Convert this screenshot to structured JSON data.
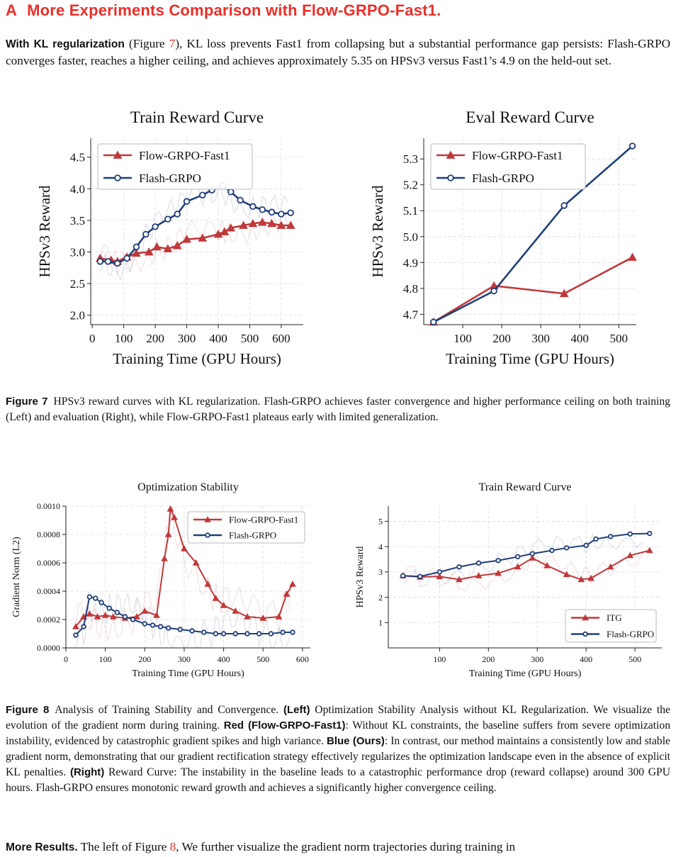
{
  "section": {
    "number": "A",
    "title": "More Experiments Comparison with Flow-GRPO-Fast1."
  },
  "intro": {
    "lead": "With KL regularization",
    "text_1": " (Figure ",
    "ref": "7",
    "text_2": "), KL loss prevents Fast1 from collapsing but a substantial performance gap persists: Flash-GRPO converges faster, reaches a higher ceiling, and achieves approximately 5.35 on HPSv3 versus Fast1’s 4.9 on the held-out set."
  },
  "figure7_caption": {
    "label": "Figure 7",
    "text": "HPSv3 reward curves with KL regularization. Flash-GRPO achieves faster convergence and higher performance ceiling on both training (Left) and evaluation (Right), while Flow-GRPO-Fast1 plateaus early with limited generalization."
  },
  "figure8_caption": {
    "label": "Figure 8",
    "text_1": "Analysis of Training Stability and Convergence. ",
    "left_label": "(Left)",
    "text_2": " Optimization Stability Analysis without KL Regularization. We visualize the evolution of the gradient norm during training. ",
    "red_label": "Red (Flow-GRPO-Fast1)",
    "text_3": ": Without KL constraints, the baseline suffers from severe optimization instability, evidenced by catastrophic gradient spikes and high variance. ",
    "blue_label": "Blue (Ours)",
    "text_4": ": In contrast, our method maintains a consistently low and stable gradient norm, demonstrating that our gradient rectification strategy effectively regularizes the optimization landscape even in the absence of explicit KL penalties. ",
    "right_label": "(Right)",
    "text_5": " Reward Curve: The instability in the baseline leads to a catastrophic performance drop (reward collapse) around 300 GPU hours. Flash-GRPO ensures monotonic reward growth and achieves a significantly higher convergence ceiling."
  },
  "more_results": {
    "lead": "More Results.",
    "text_1": " The left of Figure ",
    "ref": "8",
    "text_2": ", We further visualize the gradient norm trajectories during training in"
  },
  "colors": {
    "red": "#c0393b",
    "blue": "#1f3f7a",
    "accent": "#e8302a"
  },
  "chart_data": [
    {
      "type": "line",
      "title": "Train Reward Curve",
      "xlabel": "Training Time (GPU Hours)",
      "ylabel": "HPSv3 Reward",
      "xlim": [
        -5,
        670
      ],
      "ylim": [
        1.85,
        4.8
      ],
      "xticks": [
        0,
        100,
        200,
        300,
        400,
        500,
        600
      ],
      "yticks": [
        2.0,
        2.5,
        3.0,
        3.5,
        4.0,
        4.5
      ],
      "ytick_decimals": 1,
      "grid": true,
      "legend": "top-left",
      "series": [
        {
          "name": "Flow-GRPO-Fast1",
          "color": "#c0393b",
          "marker": "triangle",
          "x": [
            25,
            60,
            80,
            110,
            140,
            180,
            205,
            240,
            270,
            300,
            350,
            400,
            420,
            440,
            480,
            510,
            540,
            570,
            600,
            630
          ],
          "y": [
            2.9,
            2.87,
            2.85,
            2.92,
            2.98,
            3.0,
            3.08,
            3.05,
            3.1,
            3.2,
            3.22,
            3.28,
            3.32,
            3.38,
            3.42,
            3.45,
            3.47,
            3.45,
            3.42,
            3.42
          ]
        },
        {
          "name": "Flash-GRPO",
          "color": "#1f3f7a",
          "marker": "circle",
          "x": [
            25,
            50,
            80,
            110,
            140,
            170,
            200,
            240,
            270,
            300,
            350,
            380,
            415,
            440,
            470,
            510,
            540,
            570,
            600,
            630
          ],
          "y": [
            2.85,
            2.85,
            2.82,
            2.9,
            3.08,
            3.28,
            3.4,
            3.52,
            3.6,
            3.8,
            3.9,
            3.98,
            4.05,
            3.95,
            3.82,
            3.72,
            3.67,
            3.63,
            3.6,
            3.62
          ]
        }
      ]
    },
    {
      "type": "line",
      "title": "Eval Reward Curve",
      "xlabel": "Training Time (GPU Hours)",
      "ylabel": "HPSv3 Reward",
      "xlim": [
        0,
        545
      ],
      "ylim": [
        4.66,
        5.38
      ],
      "xticks": [
        100,
        200,
        300,
        400,
        500
      ],
      "yticks": [
        4.7,
        4.8,
        4.9,
        5.0,
        5.1,
        5.2,
        5.3
      ],
      "ytick_decimals": 1,
      "grid": true,
      "legend": "top-left",
      "series": [
        {
          "name": "Flow-GRPO-Fast1",
          "color": "#c0393b",
          "marker": "triangle",
          "x": [
            25,
            180,
            360,
            535
          ],
          "y": [
            4.67,
            4.81,
            4.78,
            4.92
          ]
        },
        {
          "name": "Flash-GRPO",
          "color": "#1f3f7a",
          "marker": "circle",
          "x": [
            25,
            180,
            360,
            535
          ],
          "y": [
            4.67,
            4.79,
            5.12,
            5.35
          ]
        }
      ]
    },
    {
      "type": "line",
      "title": "Optimization Stability",
      "xlabel": "Training Time (GPU Hours)",
      "ylabel": "Gradient Norm (L2)",
      "xlim": [
        0,
        620
      ],
      "ylim": [
        0,
        0.001
      ],
      "xticks": [
        0,
        100,
        200,
        300,
        400,
        500,
        600
      ],
      "yticks": [
        0.0,
        0.0002,
        0.0004,
        0.0006,
        0.0008,
        0.001
      ],
      "ytick_decimals": 4,
      "grid": true,
      "legend": "top-right",
      "series": [
        {
          "name": "Flow-GRPO-Fast1",
          "color": "#c0393b",
          "marker": "triangle",
          "x": [
            25,
            45,
            60,
            80,
            100,
            120,
            150,
            180,
            200,
            230,
            250,
            260,
            265,
            275,
            300,
            330,
            360,
            380,
            400,
            430,
            460,
            500,
            540,
            560,
            575
          ],
          "y": [
            0.00015,
            0.00022,
            0.00024,
            0.00022,
            0.00023,
            0.00022,
            0.00021,
            0.00022,
            0.00026,
            0.00023,
            0.00063,
            0.0008,
            0.00098,
            0.00092,
            0.0007,
            0.0006,
            0.00045,
            0.00035,
            0.0003,
            0.00026,
            0.00022,
            0.00021,
            0.00022,
            0.00038,
            0.00045
          ]
        },
        {
          "name": "Flash-GRPO",
          "color": "#1f3f7a",
          "marker": "circle",
          "x": [
            25,
            45,
            60,
            75,
            90,
            110,
            130,
            150,
            170,
            200,
            220,
            240,
            260,
            290,
            320,
            350,
            380,
            400,
            430,
            460,
            490,
            520,
            550,
            575
          ],
          "y": [
            9e-05,
            0.00015,
            0.00036,
            0.00035,
            0.00032,
            0.00028,
            0.00025,
            0.00022,
            0.0002,
            0.00017,
            0.00016,
            0.00015,
            0.00014,
            0.00013,
            0.00012,
            0.00011,
            0.0001,
            0.0001,
            0.0001,
            0.0001,
            0.0001,
            0.0001,
            0.00011,
            0.00011
          ]
        }
      ]
    },
    {
      "type": "line",
      "title": "Train Reward Curve",
      "xlabel": "Training Time (GPU Hours)",
      "ylabel": "HPSv3 Reward",
      "xlim": [
        -5,
        555
      ],
      "ylim": [
        0,
        5.6
      ],
      "xticks": [
        100,
        200,
        300,
        400,
        500
      ],
      "yticks": [
        1,
        2,
        3,
        4,
        5
      ],
      "ytick_decimals": 0,
      "grid": true,
      "legend": "bottom-right",
      "series": [
        {
          "name": "ITG",
          "color": "#c0393b",
          "marker": "triangle",
          "x": [
            25,
            60,
            100,
            140,
            180,
            220,
            260,
            290,
            320,
            360,
            390,
            410,
            450,
            490,
            530
          ],
          "y": [
            2.85,
            2.8,
            2.82,
            2.7,
            2.85,
            2.95,
            3.2,
            3.55,
            3.25,
            2.9,
            2.7,
            2.75,
            3.2,
            3.65,
            3.85
          ]
        },
        {
          "name": "Flash-GRPO",
          "color": "#1f3f7a",
          "marker": "circle",
          "x": [
            25,
            60,
            100,
            140,
            180,
            220,
            260,
            290,
            330,
            360,
            400,
            420,
            450,
            490,
            530
          ],
          "y": [
            2.85,
            2.82,
            3.0,
            3.2,
            3.35,
            3.45,
            3.6,
            3.72,
            3.85,
            3.95,
            4.05,
            4.3,
            4.4,
            4.5,
            4.52
          ]
        }
      ]
    }
  ]
}
